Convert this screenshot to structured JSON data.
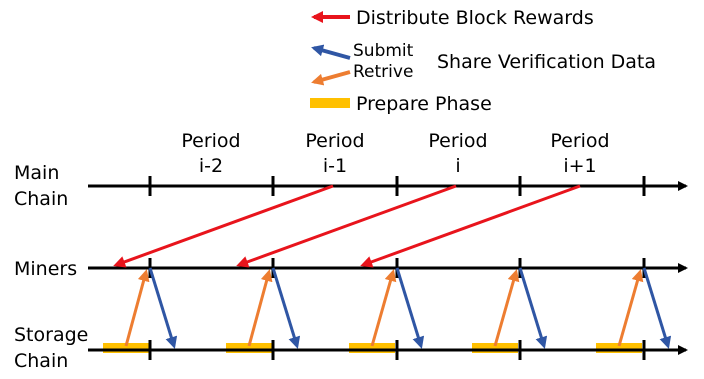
{
  "legend": {
    "rewards_label": "Distribute Block Rewards",
    "submit_label": "Submit",
    "retrive_label": "Retrive",
    "share_label": "Share Verification Data",
    "prepare_label": "Prepare Phase"
  },
  "periods": [
    {
      "line1": "Period",
      "line2": "i-2"
    },
    {
      "line1": "Period",
      "line2": "i-1"
    },
    {
      "line1": "Period",
      "line2": "i"
    },
    {
      "line1": "Period",
      "line2": "i+1"
    }
  ],
  "rows": {
    "main_chain_line1": "Main",
    "main_chain_line2": "Chain",
    "miners": "Miners",
    "storage_chain_line1": "Storage",
    "storage_chain_line2": "Chain"
  },
  "colors": {
    "reward_arrow": "#e8141c",
    "submit_arrow": "#2f56a4",
    "retrive_arrow": "#ed7d31",
    "prepare_bar": "#ffc000",
    "timeline": "#000000"
  }
}
